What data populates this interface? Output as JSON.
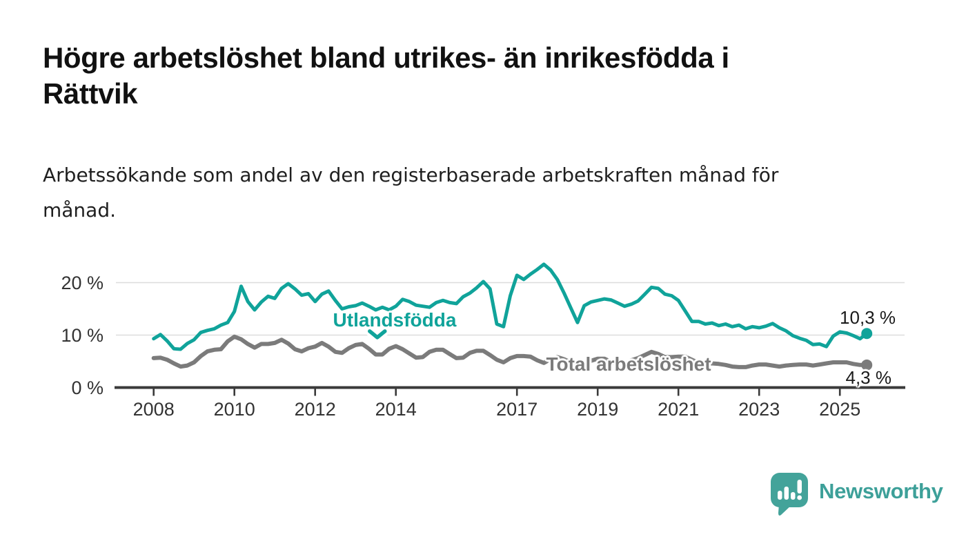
{
  "header": {
    "title_line1": "Högre arbetslöshet bland utrikes- än inrikesfödda i",
    "title_line2": "Rättvik",
    "subtitle_line1": "Arbetssökande som andel av den registerbaserade arbetskraften månad för",
    "subtitle_line2": "månad."
  },
  "chart_data": {
    "type": "line",
    "title": "Högre arbetslöshet bland utrikes- än inrikesfödda i Rättvik",
    "subtitle": "Arbetssökande som andel av den registerbaserade arbetskraften månad för månad.",
    "unit": "%",
    "grid": "horizontal-only",
    "x_start_year": 2008.0,
    "x_step_years": 0.16667,
    "x_end_year": 2025.67,
    "x_ticks": [
      2008,
      2010,
      2012,
      2014,
      2017,
      2019,
      2021,
      2023,
      2025
    ],
    "x_tick_labels": [
      "2008",
      "2010",
      "2012",
      "2014",
      "2017",
      "2019",
      "2021",
      "2023",
      "2025"
    ],
    "y_ticks": [
      0,
      10,
      20
    ],
    "y_tick_labels": [
      "0 %",
      "10 %",
      "20 %"
    ],
    "ylim": [
      0,
      24.5
    ],
    "series": [
      {
        "name": "Utlandsfödda",
        "color": "#10a39a",
        "end_value": 10.3,
        "end_label": "10,3 %",
        "values": [
          9.3,
          10.1,
          8.9,
          7.4,
          7.3,
          8.4,
          9.1,
          10.5,
          10.9,
          11.2,
          11.9,
          12.4,
          14.5,
          19.3,
          16.4,
          14.8,
          16.3,
          17.4,
          17,
          18.9,
          19.8,
          18.8,
          17.6,
          17.9,
          16.4,
          17.8,
          18.4,
          16.6,
          15,
          15.4,
          15.6,
          16.1,
          15.5,
          14.8,
          15.3,
          14.8,
          15.5,
          16.8,
          16.4,
          15.7,
          15.5,
          15.3,
          16.2,
          16.6,
          16.2,
          16,
          17.3,
          18,
          19,
          20.2,
          18.8,
          12.1,
          11.6,
          17.5,
          21.4,
          20.6,
          21.6,
          22.5,
          23.5,
          22.4,
          20.6,
          18,
          15.2,
          12.4,
          15.6,
          16.3,
          16.6,
          16.9,
          16.7,
          16.1,
          15.5,
          15.9,
          16.5,
          17.8,
          19.1,
          18.9,
          17.8,
          17.5,
          16.6,
          14.6,
          12.6,
          12.6,
          12.1,
          12.3,
          11.8,
          12.1,
          11.6,
          11.9,
          11.2,
          11.6,
          11.4,
          11.7,
          12.2,
          11.4,
          10.8,
          9.9,
          9.4,
          9,
          8.2,
          8.3,
          7.8,
          9.8,
          10.6,
          10.4,
          9.9,
          9.3,
          10.3
        ]
      },
      {
        "name": "Total arbetslöshet",
        "color": "#7b7b7b",
        "end_value": 4.3,
        "end_label": "4,3 %",
        "values": [
          5.6,
          5.7,
          5.3,
          4.6,
          4,
          4.2,
          4.8,
          6,
          6.9,
          7.2,
          7.3,
          8.8,
          9.7,
          9.2,
          8.3,
          7.6,
          8.3,
          8.3,
          8.5,
          9.1,
          8.4,
          7.3,
          6.9,
          7.5,
          7.8,
          8.5,
          7.8,
          6.8,
          6.6,
          7.5,
          8.1,
          8.3,
          7.4,
          6.3,
          6.3,
          7.4,
          7.9,
          7.3,
          6.5,
          5.7,
          5.8,
          6.8,
          7.2,
          7.2,
          6.4,
          5.6,
          5.7,
          6.6,
          7,
          7,
          6.2,
          5.3,
          4.8,
          5.6,
          6,
          6,
          5.9,
          5.2,
          4.7,
          5.4,
          5.8,
          5.4,
          4.8,
          4.2,
          4.2,
          5.1,
          5.5,
          5.5,
          4.9,
          4.4,
          4.4,
          5.2,
          5.6,
          6.2,
          6.8,
          6.4,
          5.8,
          5.8,
          5.9,
          5.9,
          5.3,
          4.7,
          4.3,
          4.6,
          4.5,
          4.3,
          4,
          3.9,
          3.9,
          4.2,
          4.4,
          4.4,
          4.2,
          4,
          4.2,
          4.3,
          4.4,
          4.4,
          4.2,
          4.4,
          4.6,
          4.8,
          4.8,
          4.8,
          4.5,
          4.3,
          4.3
        ]
      }
    ],
    "annotation_caret": {
      "series": "Utlandsfödda",
      "year": 2013.54,
      "pct": 9.55
    }
  },
  "logo": {
    "text": "Newsworthy"
  },
  "colors": {
    "accent_teal": "#10a39a",
    "series_gray": "#7b7b7b",
    "grid": "#dcdcdc",
    "axis": "#3a3a3a",
    "title": "#111111",
    "logo_teal": "#3da099"
  }
}
